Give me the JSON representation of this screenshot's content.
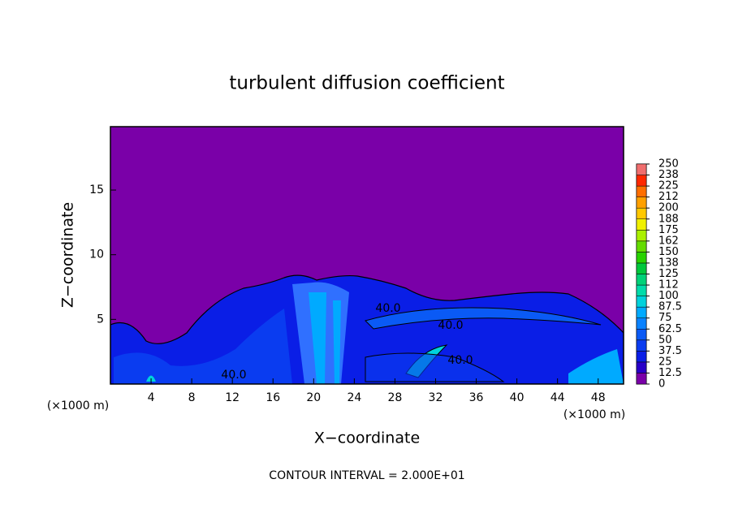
{
  "chart_data": {
    "type": "contour",
    "title": "turbulent diffusion coefficient",
    "xlabel": "X−coordinate",
    "ylabel": "Z−coordinate",
    "xunit": "(×1000 m)",
    "yunit": "(×1000 m)",
    "footer": "CONTOUR INTERVAL = 2.000E+01",
    "xlim": [
      0,
      50.5
    ],
    "ylim": [
      0,
      19.9
    ],
    "xticks": [
      4,
      8,
      12,
      16,
      20,
      24,
      28,
      32,
      36,
      40,
      44,
      48
    ],
    "yticks": [
      5,
      10,
      15
    ],
    "annotations": [
      "40.0",
      "40.0",
      "40.0",
      "40.0"
    ],
    "colorbar": {
      "ticks": [
        0,
        12.5,
        25,
        37.5,
        50,
        62.5,
        75,
        87.5,
        100,
        {
          "value": 112.5,
          "label": "112"
        },
        125,
        {
          "value": 137.5,
          "label": "138"
        },
        150,
        {
          "value": 162.5,
          "label": "162"
        },
        175,
        {
          "value": 187.5,
          "label": "188"
        },
        200,
        {
          "value": 212.5,
          "label": "212"
        },
        225,
        {
          "value": 237.5,
          "label": "238"
        },
        250
      ],
      "colors": [
        "#7a00a8",
        "#2800c8",
        "#0a1ee6",
        "#0a3cf0",
        "#0a5af5",
        "#0a82ff",
        "#00aaff",
        "#00d2dc",
        "#00dcaa",
        "#00d278",
        "#00c83c",
        "#28d200",
        "#64dc00",
        "#aaf000",
        "#f0f000",
        "#ffc800",
        "#ffa000",
        "#ff6e00",
        "#ff2800",
        "#f06e6e"
      ]
    }
  }
}
